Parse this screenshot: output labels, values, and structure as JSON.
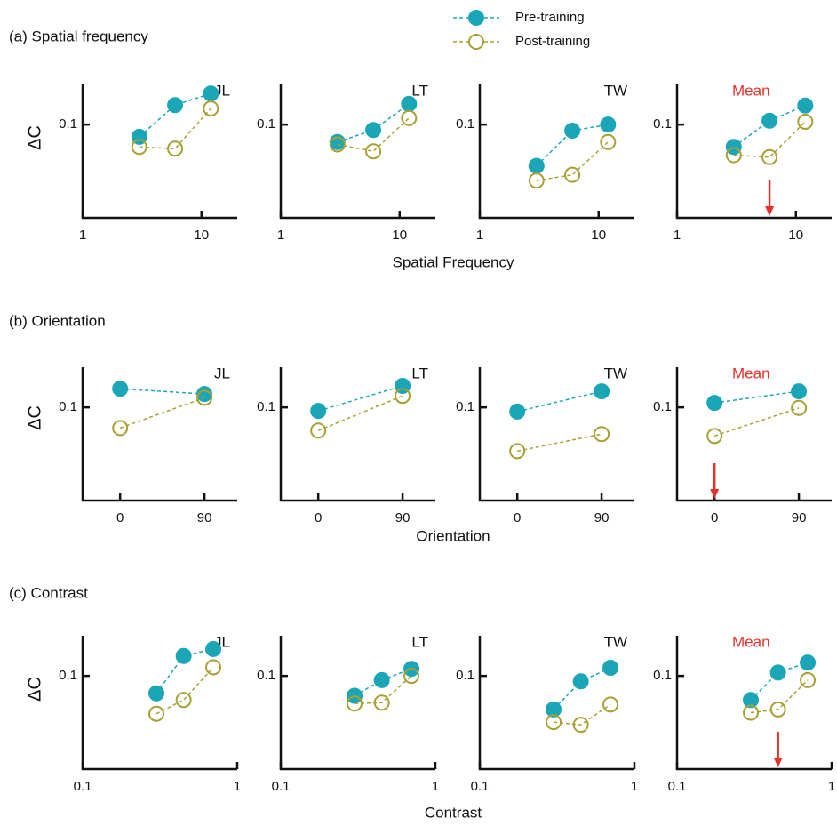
{
  "legend": [
    {
      "name": "Pre-training",
      "color": "#1aa6b7",
      "filled": true
    },
    {
      "name": "Post-training",
      "color": "#a8a032",
      "filled": false
    }
  ],
  "rows": [
    {
      "label": "(a) Spatial frequency",
      "xlabel": "Spatial Frequency",
      "ylabel": "ΔC"
    },
    {
      "label": "(b) Orientation",
      "xlabel": "Orientation",
      "ylabel": "ΔC"
    },
    {
      "label": "(c) Contrast",
      "xlabel": "Contrast",
      "ylabel": "ΔC"
    }
  ],
  "chart_data": [
    {
      "type": "line",
      "title": "JL",
      "x": [
        3,
        6,
        12
      ],
      "xscale": "log",
      "xlim": [
        1,
        20
      ],
      "xticks": [
        1,
        10
      ],
      "yscale": "log",
      "ylim": [
        0.02,
        0.2
      ],
      "yticks": [
        0.1
      ],
      "series": [
        {
          "values": [
            0.081,
            0.14,
            0.171
          ]
        },
        {
          "values": [
            0.068,
            0.066,
            0.132
          ]
        }
      ]
    },
    {
      "type": "line",
      "title": "LT",
      "x": [
        3,
        6,
        12
      ],
      "xscale": "log",
      "xlim": [
        1,
        20
      ],
      "xticks": [
        1,
        10
      ],
      "yscale": "log",
      "ylim": [
        0.02,
        0.2
      ],
      "yticks": [
        0.1
      ],
      "series": [
        {
          "values": [
            0.074,
            0.091,
            0.143
          ]
        },
        {
          "values": [
            0.071,
            0.063,
            0.112
          ]
        }
      ]
    },
    {
      "type": "line",
      "title": "TW",
      "x": [
        3,
        6,
        12
      ],
      "xscale": "log",
      "xlim": [
        1,
        20
      ],
      "xticks": [
        1,
        10
      ],
      "yscale": "log",
      "ylim": [
        0.02,
        0.2
      ],
      "yticks": [
        0.1
      ],
      "series": [
        {
          "values": [
            0.049,
            0.09,
            0.1
          ]
        },
        {
          "values": [
            0.038,
            0.042,
            0.074
          ]
        }
      ]
    },
    {
      "type": "line",
      "title": "Mean",
      "title_color": "#e8302a",
      "arrow_x": 6,
      "x": [
        3,
        6,
        12
      ],
      "xscale": "log",
      "xlim": [
        1,
        20
      ],
      "xticks": [
        1,
        10
      ],
      "yscale": "log",
      "ylim": [
        0.02,
        0.2
      ],
      "yticks": [
        0.1
      ],
      "series": [
        {
          "values": [
            0.068,
            0.107,
            0.139
          ]
        },
        {
          "values": [
            0.059,
            0.057,
            0.105
          ]
        }
      ]
    },
    {
      "type": "line",
      "title": "JL",
      "x": [
        0,
        90
      ],
      "xlim": [
        -40,
        125
      ],
      "xticks": [
        0,
        90
      ],
      "yscale": "log",
      "ylim": [
        0.02,
        0.2
      ],
      "yticks": [
        0.1
      ],
      "series": [
        {
          "values": [
            0.138,
            0.126
          ]
        },
        {
          "values": [
            0.07,
            0.118
          ]
        }
      ]
    },
    {
      "type": "line",
      "title": "LT",
      "x": [
        0,
        90
      ],
      "xlim": [
        -40,
        125
      ],
      "xticks": [
        0,
        90
      ],
      "yscale": "log",
      "ylim": [
        0.02,
        0.2
      ],
      "yticks": [
        0.1
      ],
      "series": [
        {
          "values": [
            0.094,
            0.145
          ]
        },
        {
          "values": [
            0.067,
            0.122
          ]
        }
      ]
    },
    {
      "type": "line",
      "title": "TW",
      "x": [
        0,
        90
      ],
      "xlim": [
        -40,
        125
      ],
      "xticks": [
        0,
        90
      ],
      "yscale": "log",
      "ylim": [
        0.02,
        0.2
      ],
      "yticks": [
        0.1
      ],
      "series": [
        {
          "values": [
            0.093,
            0.132
          ]
        },
        {
          "values": [
            0.047,
            0.063
          ]
        }
      ]
    },
    {
      "type": "line",
      "title": "Mean",
      "title_color": "#e8302a",
      "arrow_x": 0,
      "x": [
        0,
        90
      ],
      "xlim": [
        -40,
        125
      ],
      "xticks": [
        0,
        90
      ],
      "yscale": "log",
      "ylim": [
        0.02,
        0.2
      ],
      "yticks": [
        0.1
      ],
      "series": [
        {
          "values": [
            0.108,
            0.132
          ]
        },
        {
          "values": [
            0.061,
            0.099
          ]
        }
      ]
    },
    {
      "type": "line",
      "title": "JL",
      "x": [
        0.3,
        0.45,
        0.7
      ],
      "xscale": "log",
      "xlim": [
        0.1,
        1
      ],
      "xticks": [
        0.1,
        1
      ],
      "yscale": "log",
      "ylim": [
        0.02,
        0.2
      ],
      "yticks": [
        0.1
      ],
      "series": [
        {
          "values": [
            0.074,
            0.141,
            0.159
          ]
        },
        {
          "values": [
            0.052,
            0.066,
            0.116
          ]
        }
      ]
    },
    {
      "type": "line",
      "title": "LT",
      "x": [
        0.3,
        0.45,
        0.7
      ],
      "xscale": "log",
      "xlim": [
        0.1,
        1
      ],
      "xticks": [
        0.1,
        1
      ],
      "yscale": "log",
      "ylim": [
        0.02,
        0.2
      ],
      "yticks": [
        0.1
      ],
      "series": [
        {
          "values": [
            0.071,
            0.093,
            0.113
          ]
        },
        {
          "values": [
            0.062,
            0.063,
            0.1
          ]
        }
      ]
    },
    {
      "type": "line",
      "title": "TW",
      "x": [
        0.3,
        0.45,
        0.7
      ],
      "xscale": "log",
      "xlim": [
        0.1,
        1
      ],
      "xticks": [
        0.1,
        1
      ],
      "yscale": "log",
      "ylim": [
        0.02,
        0.2
      ],
      "yticks": [
        0.1
      ],
      "series": [
        {
          "values": [
            0.056,
            0.091,
            0.115
          ]
        },
        {
          "values": [
            0.045,
            0.043,
            0.061
          ]
        }
      ]
    },
    {
      "type": "line",
      "title": "Mean",
      "title_color": "#e8302a",
      "arrow_x": 0.45,
      "x": [
        0.3,
        0.45,
        0.7
      ],
      "xscale": "log",
      "xlim": [
        0.1,
        1
      ],
      "xticks": [
        0.1,
        1
      ],
      "yscale": "log",
      "ylim": [
        0.02,
        0.2
      ],
      "yticks": [
        0.1
      ],
      "series": [
        {
          "values": [
            0.066,
            0.106,
            0.126
          ]
        },
        {
          "values": [
            0.053,
            0.056,
            0.093
          ]
        }
      ]
    }
  ]
}
